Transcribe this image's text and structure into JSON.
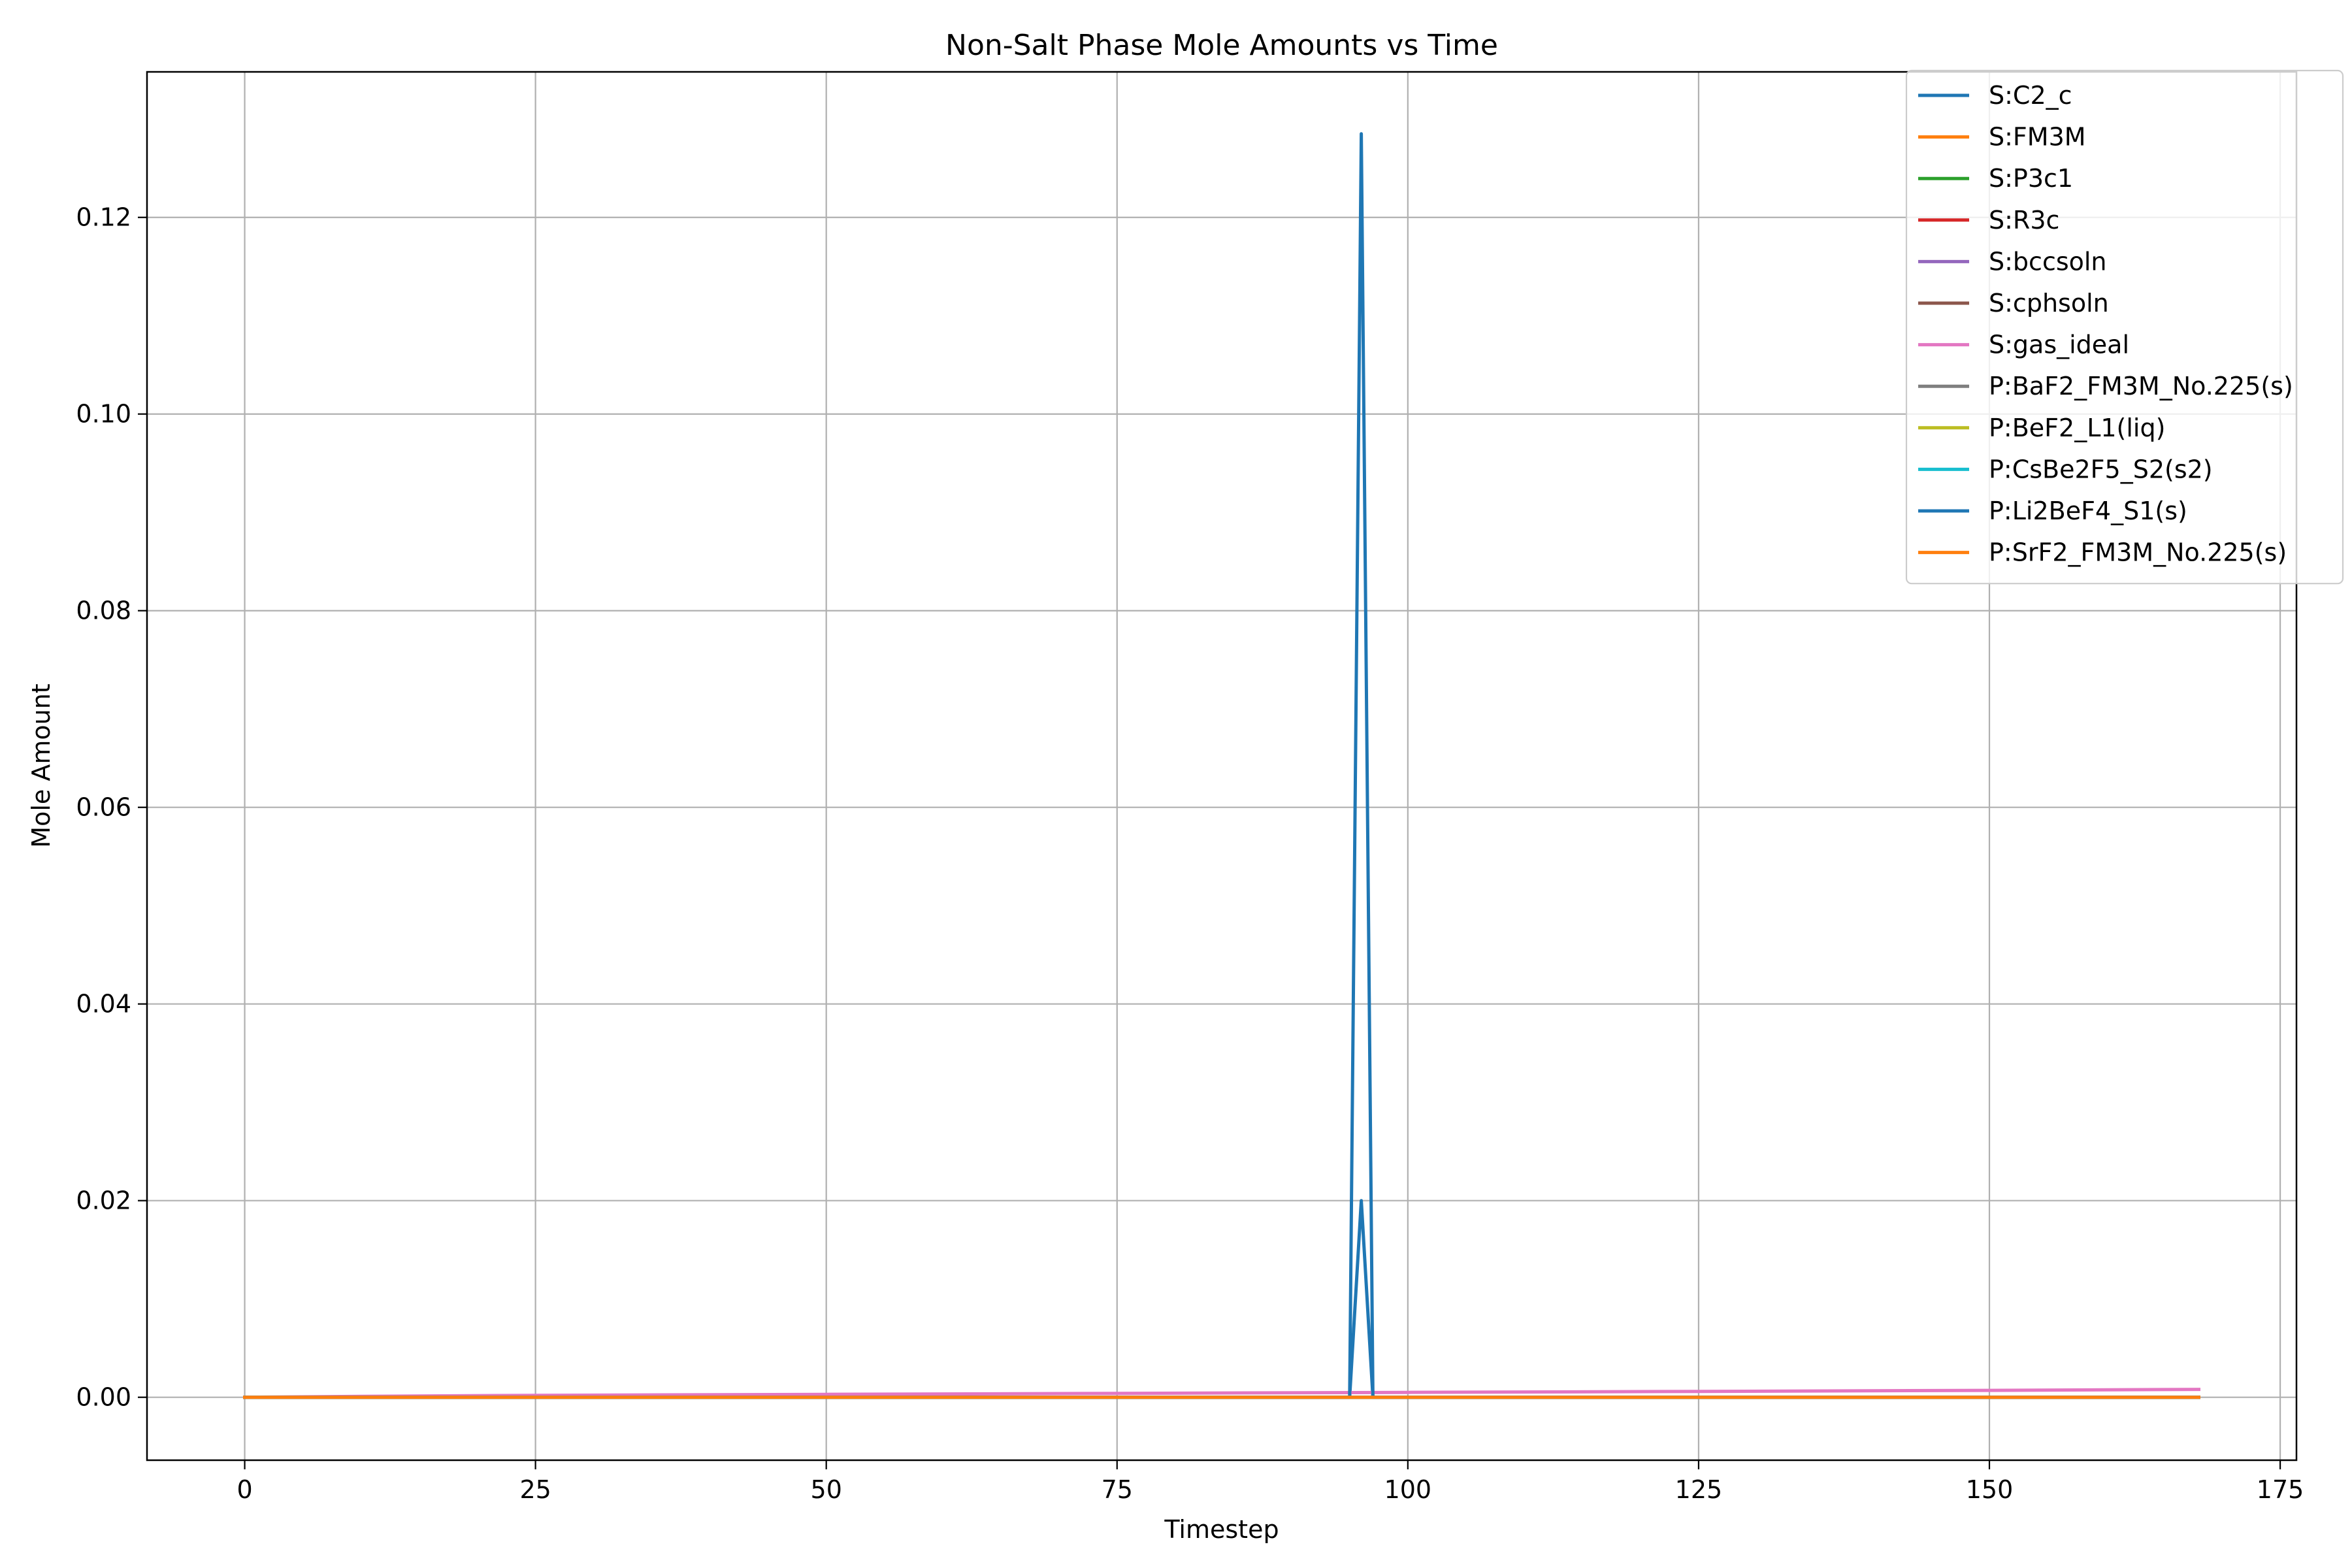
{
  "chart_data": {
    "type": "line",
    "title": "Non-Salt Phase Mole Amounts vs Time",
    "xlabel": "Timestep",
    "ylabel": "Mole Amount",
    "xlim": [
      -8.4,
      176.4
    ],
    "ylim": [
      -0.0064,
      0.1348
    ],
    "xticks": [
      0,
      25,
      50,
      75,
      100,
      125,
      150,
      175
    ],
    "xtick_labels": [
      "0",
      "25",
      "50",
      "75",
      "100",
      "125",
      "150",
      "175"
    ],
    "yticks": [
      0.0,
      0.02,
      0.04,
      0.06,
      0.08,
      0.1,
      0.12
    ],
    "ytick_labels": [
      "0.00",
      "0.02",
      "0.04",
      "0.06",
      "0.08",
      "0.10",
      "0.12"
    ],
    "grid": true,
    "legend_position": "top-right",
    "series": [
      {
        "name": "S:C2_c",
        "color": "#1f77b4",
        "x": [
          0,
          95,
          96,
          97,
          168
        ],
        "y": [
          0,
          0,
          0.02,
          0,
          0
        ]
      },
      {
        "name": "S:FM3M",
        "color": "#ff7f0e",
        "x": [
          0,
          168
        ],
        "y": [
          0,
          0
        ]
      },
      {
        "name": "S:P3c1",
        "color": "#2ca02c",
        "x": [
          0,
          168
        ],
        "y": [
          0,
          0
        ]
      },
      {
        "name": "S:R3c",
        "color": "#d62728",
        "x": [
          0,
          168
        ],
        "y": [
          0,
          0
        ]
      },
      {
        "name": "S:bccsoln",
        "color": "#9467bd",
        "x": [
          0,
          168
        ],
        "y": [
          0,
          0
        ]
      },
      {
        "name": "S:cphsoln",
        "color": "#8c564b",
        "x": [
          0,
          168
        ],
        "y": [
          0,
          0
        ]
      },
      {
        "name": "S:gas_ideal",
        "color": "#e377c2",
        "x": [
          0,
          10,
          25,
          50,
          75,
          100,
          125,
          150,
          168
        ],
        "y": [
          0,
          0.0001,
          0.0002,
          0.0003,
          0.0004,
          0.0005,
          0.0006,
          0.0007,
          0.0008
        ]
      },
      {
        "name": "P:BaF2_FM3M_No.225(s)",
        "color": "#7f7f7f",
        "x": [
          0,
          168
        ],
        "y": [
          0,
          0
        ]
      },
      {
        "name": "P:BeF2_L1(liq)",
        "color": "#bcbd22",
        "x": [
          0,
          168
        ],
        "y": [
          0,
          0
        ]
      },
      {
        "name": "P:CsBe2F5_S2(s2)",
        "color": "#17becf",
        "x": [
          0,
          168
        ],
        "y": [
          0,
          0
        ]
      },
      {
        "name": "P:Li2BeF4_S1(s)",
        "color": "#1f77b4",
        "x": [
          0,
          95,
          96,
          97,
          168
        ],
        "y": [
          0,
          0,
          0.1285,
          0,
          0
        ]
      },
      {
        "name": "P:SrF2_FM3M_No.225(s)",
        "color": "#ff7f0e",
        "x": [
          0,
          168
        ],
        "y": [
          0,
          0
        ]
      }
    ]
  }
}
